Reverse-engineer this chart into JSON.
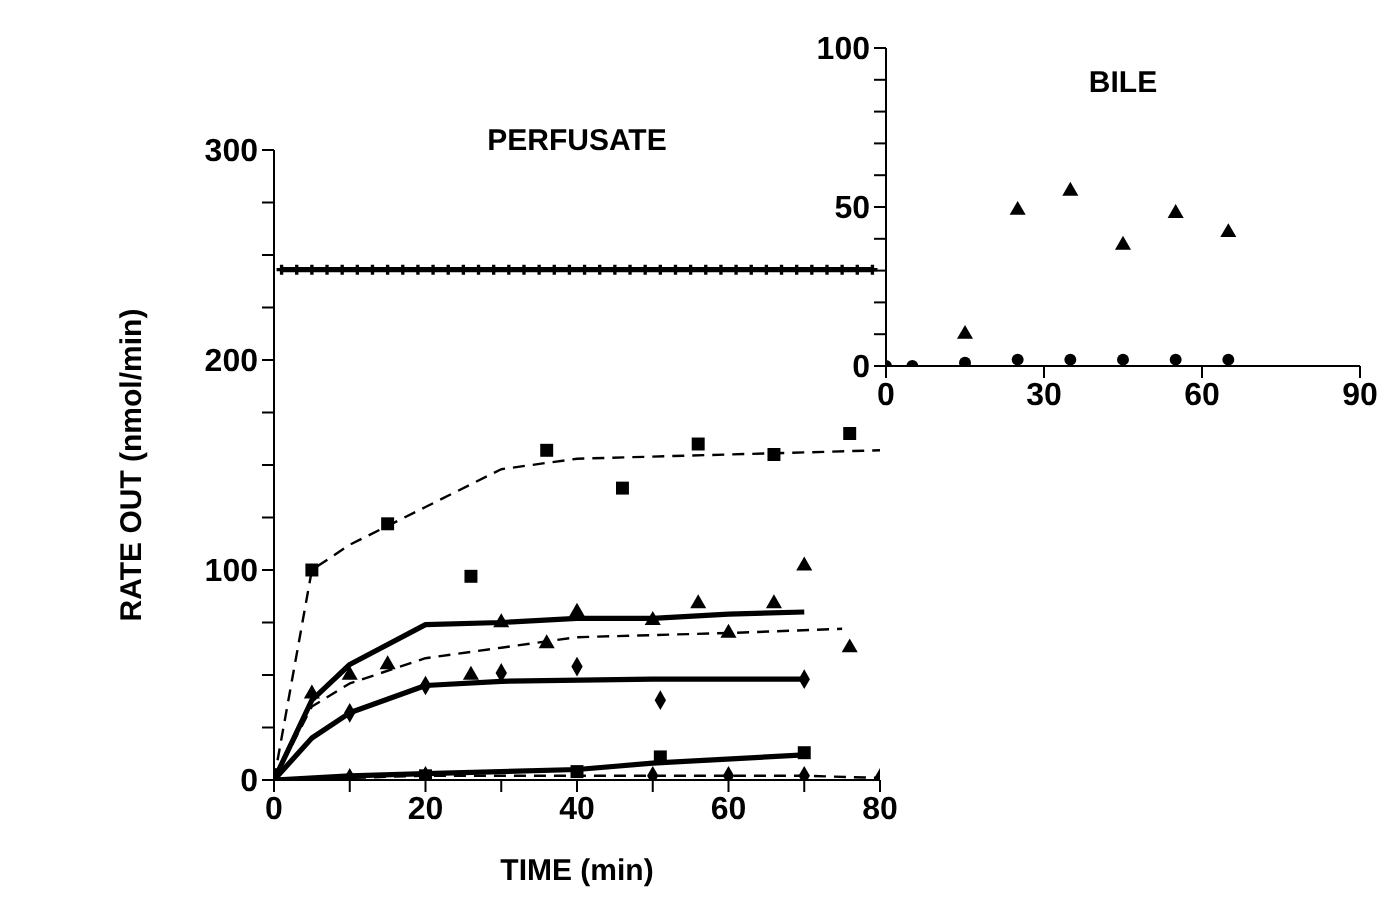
{
  "chart_data": [
    {
      "type": "scatter",
      "title": "PERFUSATE",
      "xlabel": "TIME (min)",
      "ylabel": "RATE OUT (nmol/min)",
      "xlim": [
        0,
        80
      ],
      "ylim": [
        0,
        300
      ],
      "xticks": [
        0,
        {
          "value": 10,
          "label": null
        },
        20,
        {
          "value": 30,
          "label": null
        },
        40,
        {
          "value": 50,
          "label": null
        },
        60,
        {
          "value": 70,
          "label": null
        },
        80
      ],
      "yticks": [
        0,
        {
          "value": 25,
          "label": null
        },
        {
          "value": 50,
          "label": null
        },
        {
          "value": 75,
          "label": null
        },
        100,
        {
          "value": 125,
          "label": null
        },
        {
          "value": 150,
          "label": null
        },
        {
          "value": 175,
          "label": null
        },
        200,
        {
          "value": 225,
          "label": null
        },
        {
          "value": 250,
          "label": null
        },
        {
          "value": 275,
          "label": null
        },
        300
      ],
      "grid": false,
      "legend": false,
      "series": [
        {
          "type": "line",
          "color": "#000000",
          "marker": "cross",
          "line_style": "solid",
          "x": [
            1,
            3,
            5,
            7,
            9,
            11,
            13,
            15,
            17,
            19,
            21,
            23,
            25,
            27,
            29,
            31,
            33,
            35,
            37,
            39,
            41,
            43,
            45,
            47,
            49,
            51,
            53,
            55,
            57,
            59,
            61,
            63,
            65,
            67,
            69,
            71,
            73,
            75,
            77,
            79
          ],
          "values": [
            243,
            243,
            243,
            243,
            243,
            243,
            243,
            243,
            243,
            243,
            243,
            243,
            243,
            243,
            243,
            243,
            243,
            243,
            243,
            243,
            243,
            243,
            243,
            243,
            243,
            243,
            243,
            243,
            243,
            243,
            243,
            243,
            243,
            243,
            243,
            243,
            243,
            243,
            243,
            243
          ]
        },
        {
          "type": "scatter",
          "color": "#000000",
          "marker": "square",
          "x": [
            5,
            15,
            26,
            36,
            46,
            56,
            66,
            76
          ],
          "values": [
            100,
            122,
            97,
            157,
            139,
            160,
            155,
            165
          ]
        },
        {
          "type": "line",
          "color": "#000000",
          "marker": "none",
          "line_style": "dashed",
          "x": [
            0,
            5,
            10,
            20,
            30,
            40,
            60,
            80
          ],
          "values": [
            0,
            100,
            112,
            130,
            148,
            153,
            155,
            157
          ]
        },
        {
          "type": "scatter",
          "color": "#000000",
          "marker": "triangle",
          "x": [
            5,
            10,
            30,
            40,
            50,
            60,
            70
          ],
          "values": [
            41,
            50,
            75,
            80,
            76,
            70,
            102
          ]
        },
        {
          "type": "line",
          "color": "#000000",
          "marker": "none",
          "line_style": "solid",
          "x": [
            0,
            5,
            10,
            20,
            30,
            40,
            50,
            60,
            70
          ],
          "values": [
            0,
            38,
            55,
            74,
            75,
            77,
            77,
            79,
            80
          ]
        },
        {
          "type": "scatter",
          "color": "#000000",
          "marker": "triangle",
          "x": [
            15,
            26,
            36,
            56,
            66,
            76
          ],
          "values": [
            55,
            50,
            65,
            84,
            84,
            63
          ]
        },
        {
          "type": "line",
          "color": "#000000",
          "marker": "none",
          "line_style": "dashed",
          "x": [
            0,
            5,
            10,
            20,
            30,
            40,
            60,
            75
          ],
          "values": [
            0,
            35,
            46,
            58,
            63,
            68,
            70,
            72
          ]
        },
        {
          "type": "scatter",
          "color": "#000000",
          "marker": "diamond",
          "x": [
            10,
            20,
            30,
            40,
            51,
            70
          ],
          "values": [
            32,
            45,
            51,
            54,
            38,
            48
          ]
        },
        {
          "type": "line",
          "color": "#000000",
          "marker": "none",
          "line_style": "solid",
          "x": [
            0,
            5,
            10,
            20,
            30,
            50,
            70
          ],
          "values": [
            0,
            20,
            32,
            45,
            47,
            48,
            48
          ]
        },
        {
          "type": "scatter",
          "color": "#000000",
          "marker": "square",
          "x": [
            20,
            40,
            51,
            70
          ],
          "values": [
            2,
            4,
            11,
            13
          ]
        },
        {
          "type": "line",
          "color": "#000000",
          "marker": "none",
          "line_style": "solid",
          "x": [
            0,
            10,
            20,
            40,
            50,
            70
          ],
          "values": [
            0,
            2,
            3,
            5,
            8,
            12
          ]
        },
        {
          "type": "scatter",
          "color": "#000000",
          "marker": "diamond",
          "x": [
            10,
            20,
            50,
            60,
            70,
            80
          ],
          "values": [
            1,
            2,
            2,
            2,
            2,
            1
          ]
        },
        {
          "type": "line",
          "color": "#000000",
          "marker": "none",
          "line_style": "dashed",
          "x": [
            0,
            10,
            20,
            40,
            50,
            60,
            70,
            80
          ],
          "values": [
            0,
            1,
            2,
            2,
            2,
            2,
            2,
            1
          ]
        }
      ]
    },
    {
      "type": "scatter",
      "title": "BILE",
      "xlim": [
        0,
        90
      ],
      "ylim": [
        0,
        100
      ],
      "xticks": [
        0,
        30,
        60,
        90
      ],
      "yticks": [
        0,
        {
          "value": 10,
          "label": null
        },
        {
          "value": 20,
          "label": null
        },
        {
          "value": 30,
          "label": null
        },
        {
          "value": 40,
          "label": null
        },
        50,
        {
          "value": 60,
          "label": null
        },
        {
          "value": 70,
          "label": null
        },
        {
          "value": 80,
          "label": null
        },
        {
          "value": 90,
          "label": null
        },
        100
      ],
      "grid": false,
      "legend": false,
      "series": [
        {
          "type": "scatter",
          "color": "#000000",
          "marker": "triangle",
          "x": [
            15,
            25,
            35,
            45,
            55,
            65
          ],
          "values": [
            10,
            49,
            55,
            38,
            48,
            42
          ]
        },
        {
          "type": "scatter",
          "color": "#000000",
          "marker": "circle",
          "x": [
            0,
            5,
            15,
            25,
            35,
            45,
            55,
            65
          ],
          "values": [
            0,
            0,
            1,
            2,
            2,
            2,
            2,
            2
          ]
        }
      ]
    }
  ]
}
